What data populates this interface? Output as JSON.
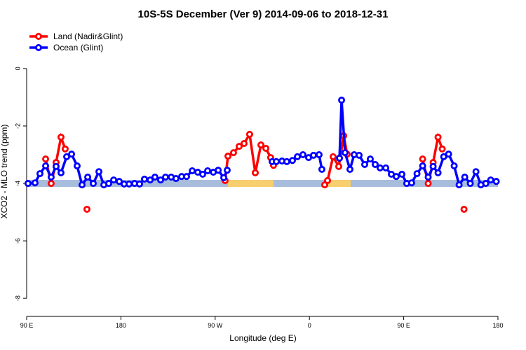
{
  "chart_data": {
    "type": "line",
    "title": "10S-5S December (Ver 9)   2014-09-06 to 2018-12-31",
    "x_label": "Longitude (deg E)",
    "y_label": "XCO2 - MLO trend (ppm)",
    "xlim": [
      90,
      540
    ],
    "xticks": [
      {
        "value": 90,
        "label": "90 E"
      },
      180,
      {
        "value": 270,
        "label": "90 W"
      },
      {
        "value": 360,
        "label": "0"
      },
      {
        "value": 450,
        "label": "90 E"
      },
      {
        "value": 540,
        "label": "180"
      }
    ],
    "ylim": [
      -8.63,
      1.46
    ],
    "yticks": [
      0,
      -2,
      -4,
      -6,
      -8
    ],
    "legend": "topleft",
    "series": [
      {
        "name": "Land (Nadir&Glint)",
        "color": "#ff0000",
        "x": [
          108.1,
          113.4,
          118.1,
          122.8,
          126.8,
          null,
          147.6,
          null,
          279.5,
          282.2,
          287.5,
          292.9,
          297.6,
          302.9,
          308.3,
          313.7,
          318.4,
          323.0,
          325.7,
          null,
          374.6,
          377.3,
          382.6,
          388.0,
          392.7,
          396.0,
          null,
          468.1,
          473.4,
          478.1,
          482.8,
          486.8,
          null,
          507.6
        ],
        "values": [
          -3.15,
          -4.0,
          -3.27,
          -2.39,
          -2.8,
          null,
          -4.9,
          null,
          -3.9,
          -3.05,
          -2.93,
          -2.71,
          -2.61,
          -2.29,
          -3.63,
          -2.66,
          -2.78,
          -3.1,
          -3.37,
          null,
          -4.05,
          -3.9,
          -3.07,
          -3.41,
          -2.34,
          -2.98,
          null,
          -3.15,
          -4.0,
          -3.27,
          -2.39,
          -2.8,
          null,
          -4.9
        ]
      },
      {
        "name": "Ocean (Glint)",
        "color": "#0000ff",
        "x": [
          91.3,
          98.0,
          102.7,
          108.1,
          113.4,
          118.1,
          122.8,
          128.2,
          132.9,
          138.2,
          142.9,
          148.3,
          153.6,
          159.0,
          163.7,
          168.4,
          173.1,
          178.4,
          183.1,
          187.8,
          193.1,
          197.8,
          202.5,
          207.9,
          212.5,
          217.9,
          222.6,
          228.0,
          232.6,
          238.0,
          242.7,
          248.1,
          253.4,
          258.1,
          262.8,
          268.2,
          272.9,
          278.2,
          281.5,
          null,
          324.4,
          328.4,
          333.8,
          338.4,
          343.8,
          348.5,
          353.8,
          359.2,
          363.9,
          369.2,
          371.9,
          null,
          388.7,
          390.7,
          394.0,
          398.7,
          402.7,
          407.4,
          412.8,
          418.1,
          422.8,
          427.5,
          432.9,
          438.2,
          442.9,
          448.3,
          452.9,
          457.6,
          462.7,
          468.1,
          473.4,
          478.1,
          482.8,
          488.2,
          492.9,
          498.2,
          502.9,
          508.3,
          513.6,
          519.0,
          523.7,
          528.4,
          533.1,
          538.4
        ],
        "values": [
          -4.0,
          -3.98,
          -3.66,
          -3.39,
          -3.78,
          -3.41,
          -3.63,
          -3.07,
          -2.98,
          -3.39,
          -4.05,
          -3.78,
          -4.0,
          -3.59,
          -4.05,
          -4.0,
          -3.88,
          -3.93,
          -4.02,
          -4.02,
          -4.0,
          -4.02,
          -3.85,
          -3.88,
          -3.78,
          -3.88,
          -3.78,
          -3.78,
          -3.83,
          -3.76,
          -3.76,
          -3.56,
          -3.61,
          -3.68,
          -3.56,
          -3.61,
          -3.54,
          -3.8,
          -3.54,
          null,
          -3.24,
          -3.24,
          -3.22,
          -3.24,
          -3.2,
          -3.07,
          -3.0,
          -3.1,
          -3.02,
          -3.0,
          -3.51,
          null,
          -3.12,
          -1.1,
          -2.93,
          -3.51,
          -3.0,
          -3.02,
          -3.34,
          -3.15,
          -3.34,
          -3.46,
          -3.46,
          -3.68,
          -3.76,
          -3.68,
          -4.0,
          -3.98,
          -3.66,
          -3.39,
          -3.78,
          -3.41,
          -3.63,
          -3.07,
          -2.98,
          -3.39,
          -4.05,
          -3.78,
          -4.0,
          -3.59,
          -4.05,
          -4.0,
          -3.88,
          -3.93
        ]
      }
    ]
  }
}
